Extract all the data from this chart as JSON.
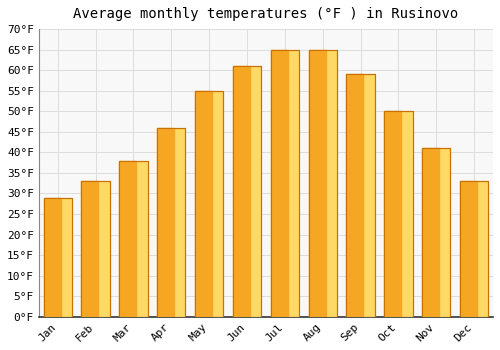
{
  "title": "Average monthly temperatures (°F ) in Rusinovo",
  "months": [
    "Jan",
    "Feb",
    "Mar",
    "Apr",
    "May",
    "Jun",
    "Jul",
    "Aug",
    "Sep",
    "Oct",
    "Nov",
    "Dec"
  ],
  "values": [
    29,
    33,
    38,
    46,
    55,
    61,
    65,
    65,
    59,
    50,
    41,
    33
  ],
  "bar_color_left": "#F5A623",
  "bar_color_right": "#FFD966",
  "bar_edge_color": "#C87000",
  "ylim": [
    0,
    70
  ],
  "ytick_step": 5,
  "background_color": "#FFFFFF",
  "plot_bg_color": "#F8F8F8",
  "grid_color": "#DDDDDD",
  "title_fontsize": 10,
  "tick_fontsize": 8,
  "font_family": "monospace"
}
